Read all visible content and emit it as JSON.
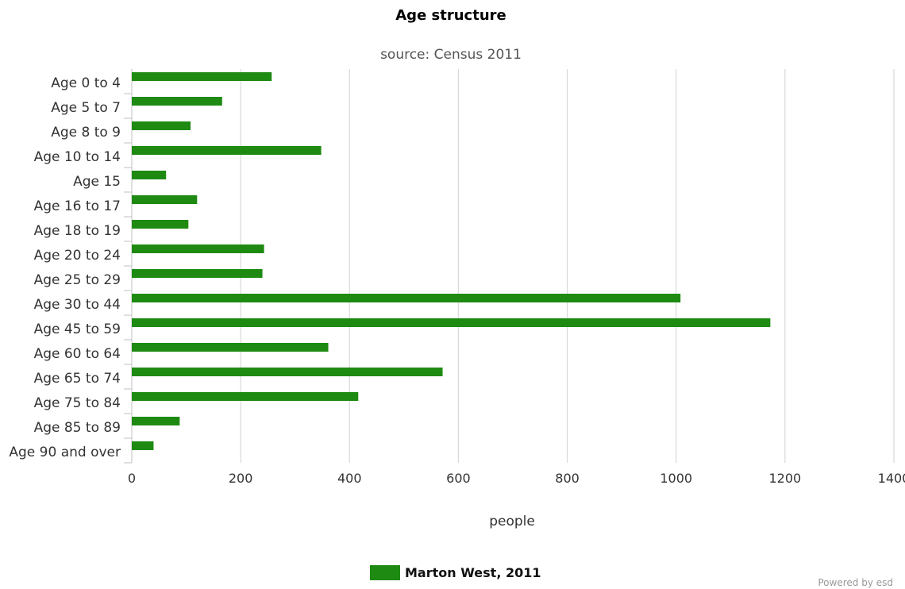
{
  "chart_data": {
    "type": "bar",
    "orientation": "horizontal",
    "title": "Age structure",
    "subtitle": "source: Census 2011",
    "xlabel": "people",
    "ylabel": "",
    "xlim": [
      0,
      1400
    ],
    "x_ticks": [
      0,
      200,
      400,
      600,
      800,
      1000,
      1200,
      1400
    ],
    "grid": true,
    "legend_position": "bottom-center",
    "categories": [
      "Age 0 to 4",
      "Age 5 to 7",
      "Age 8 to 9",
      "Age 10 to 14",
      "Age 15",
      "Age 16 to 17",
      "Age 18 to 19",
      "Age 20 to 24",
      "Age 25 to 29",
      "Age 30 to 44",
      "Age 45 to 59",
      "Age 60 to 64",
      "Age 65 to 74",
      "Age 75 to 84",
      "Age 85 to 89",
      "Age 90 and over"
    ],
    "series": [
      {
        "name": "Marton West, 2011",
        "color": "#1e8a12",
        "values": [
          257,
          166,
          108,
          348,
          63,
          120,
          104,
          243,
          240,
          1008,
          1173,
          361,
          571,
          416,
          88,
          40
        ]
      }
    ]
  },
  "credit": "Powered by esd"
}
